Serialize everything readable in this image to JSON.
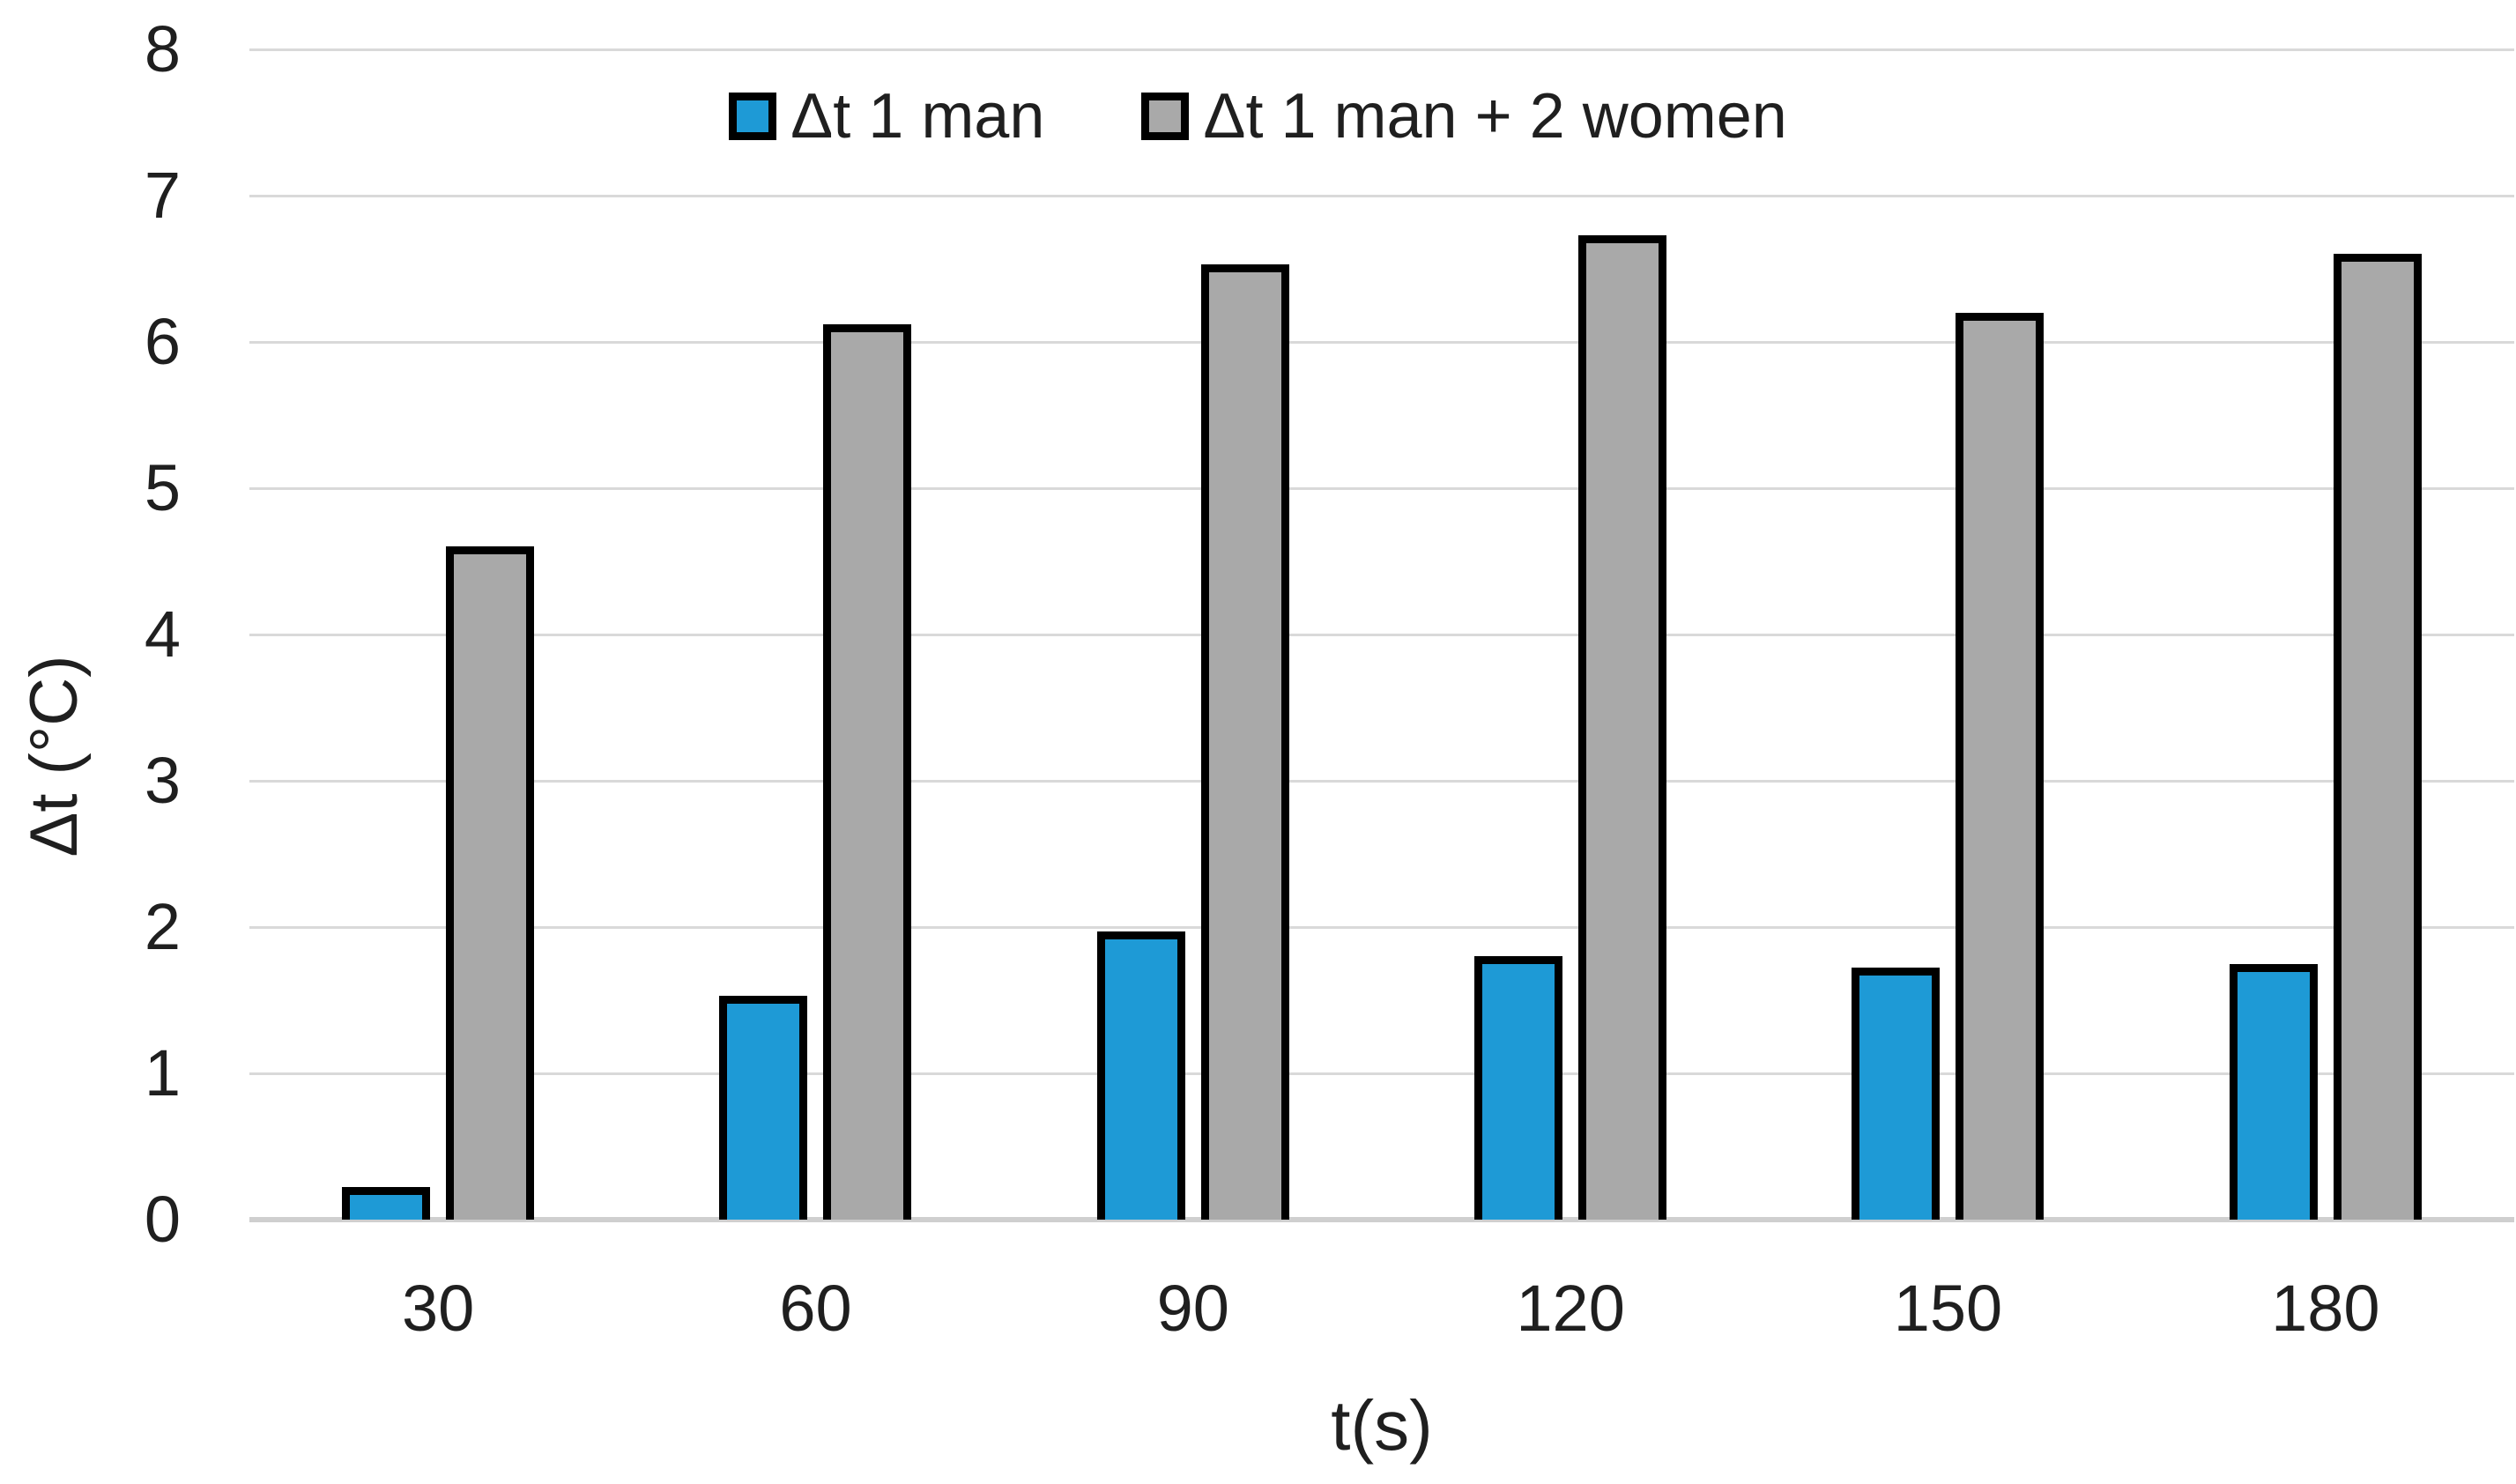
{
  "chart_data": {
    "type": "bar",
    "title": "",
    "categories": [
      "30",
      "60",
      "90",
      "120",
      "150",
      "180"
    ],
    "series": [
      {
        "name": "Δt 1 man",
        "color": "#1e9ad6",
        "values": [
          0.22,
          1.53,
          1.97,
          1.8,
          1.72,
          1.75
        ]
      },
      {
        "name": "Δt 1 man + 2 women",
        "color": "#a9a9a9",
        "values": [
          4.6,
          6.12,
          6.53,
          6.73,
          6.2,
          6.6
        ]
      }
    ],
    "xlabel": "t(s)",
    "ylabel": "Δt (°C)",
    "ylim": [
      0,
      8
    ],
    "yticks": [
      0,
      1,
      2,
      3,
      4,
      5,
      6,
      7,
      8
    ],
    "grid": true,
    "legend_position": "top-center",
    "bar_outline_color": "#000000",
    "gridline_color": "#d9d9d9",
    "baseline_color": "#cfcfcf",
    "text_color": "#1f1f1f",
    "background_color": "#ffffff"
  }
}
